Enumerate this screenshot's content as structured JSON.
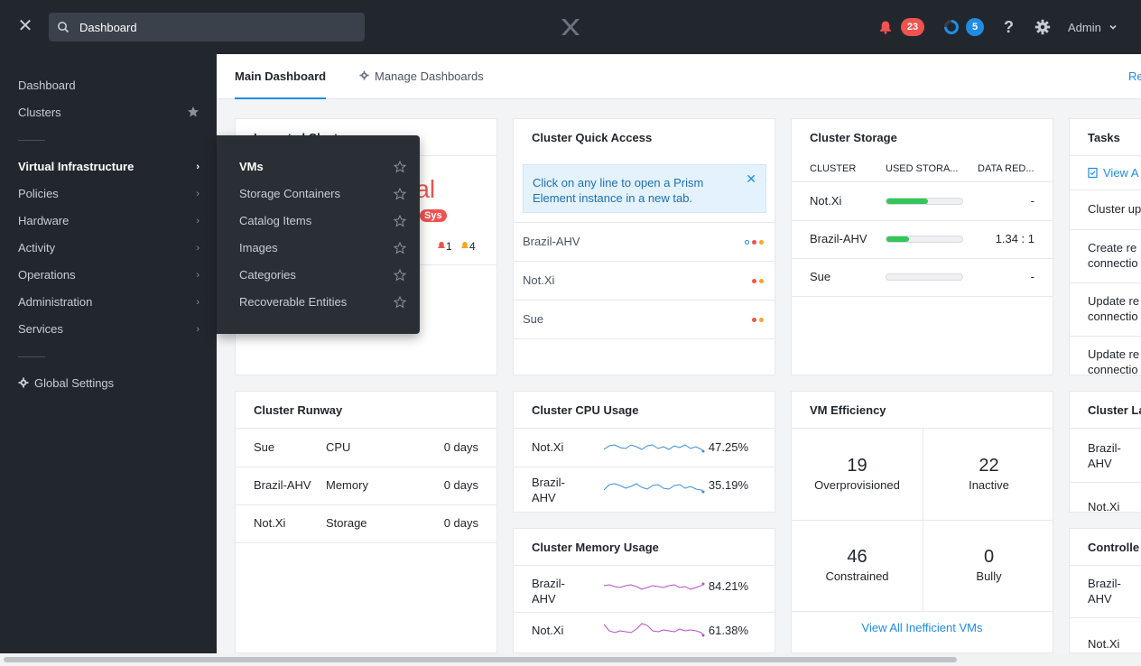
{
  "topbar": {
    "search_value": "Dashboard",
    "alerts_count": "23",
    "tasks_count": "5",
    "help_label": "?",
    "user_label": "Admin"
  },
  "sidebar": {
    "items": [
      {
        "label": "Dashboard"
      },
      {
        "label": "Clusters"
      },
      {
        "label": "Virtual Infrastructure"
      },
      {
        "label": "Policies"
      },
      {
        "label": "Hardware"
      },
      {
        "label": "Activity"
      },
      {
        "label": "Operations"
      },
      {
        "label": "Administration"
      },
      {
        "label": "Services"
      }
    ],
    "global_settings": "Global Settings"
  },
  "flyout": {
    "items": [
      {
        "label": "VMs"
      },
      {
        "label": "Storage Containers"
      },
      {
        "label": "Catalog Items"
      },
      {
        "label": "Images"
      },
      {
        "label": "Categories"
      },
      {
        "label": "Recoverable Entities"
      }
    ]
  },
  "tabs": {
    "main": "Main Dashboard",
    "manage": "Manage Dashboards",
    "reset": "Reset"
  },
  "impacted": {
    "partial_title": "Impacted Clust",
    "partial_value": "ral",
    "sys_badge": "Sys",
    "critical_count": "1",
    "warning_count": "4"
  },
  "quick_access": {
    "title": "Cluster Quick Access",
    "info": "Click on any line to open a Prism Element instance in a new tab.",
    "rows": [
      {
        "name": "Brazil-AHV"
      },
      {
        "name": "Not.Xi"
      },
      {
        "name": "Sue"
      }
    ]
  },
  "storage": {
    "title": "Cluster Storage",
    "headers": [
      "CLUSTER",
      "USED STORA...",
      "DATA RED..."
    ],
    "rows": [
      {
        "name": "Not.Xi",
        "used": 0.55,
        "reduction": "-"
      },
      {
        "name": "Brazil-AHV",
        "used": 0.3,
        "reduction": "1.34 : 1"
      },
      {
        "name": "Sue",
        "used": 0.0,
        "reduction": "-"
      }
    ]
  },
  "tasks": {
    "title": "Tasks",
    "view_all": "View A",
    "rows": [
      {
        "line1": "Cluster up",
        "line2": ""
      },
      {
        "line1": "Create re",
        "line2": "connectio"
      },
      {
        "line1": "Update re",
        "line2": "connectio"
      },
      {
        "line1": "Update re",
        "line2": "connectio"
      }
    ]
  },
  "runway": {
    "title": "Cluster Runway",
    "rows": [
      {
        "cluster": "Sue",
        "resource": "CPU",
        "value": "0 days"
      },
      {
        "cluster": "Brazil-AHV",
        "resource": "Memory",
        "value": "0 days"
      },
      {
        "cluster": "Not.Xi",
        "resource": "Storage",
        "value": "0 days"
      }
    ]
  },
  "cpu": {
    "title": "Cluster CPU Usage",
    "color": "#3b8fd6",
    "rows": [
      {
        "name_l1": "Not.Xi",
        "name_l2": "",
        "value": "47.25%"
      },
      {
        "name_l1": "Brazil-",
        "name_l2": "AHV",
        "value": "35.19%"
      }
    ]
  },
  "memory": {
    "title": "Cluster Memory Usage",
    "color": "#b44ec4",
    "rows": [
      {
        "name_l1": "Brazil-",
        "name_l2": "AHV",
        "value": "84.21%"
      },
      {
        "name_l1": "Not.Xi",
        "name_l2": "",
        "value": "61.38%"
      }
    ]
  },
  "efficiency": {
    "title": "VM Efficiency",
    "cells": [
      {
        "num": "19",
        "label": "Overprovisioned"
      },
      {
        "num": "22",
        "label": "Inactive"
      },
      {
        "num": "46",
        "label": "Constrained"
      },
      {
        "num": "0",
        "label": "Bully"
      }
    ],
    "view_all": "View All Inefficient VMs"
  },
  "latency": {
    "title": "Cluster La",
    "rows": [
      {
        "name_l1": "Brazil-",
        "name_l2": "AHV"
      },
      {
        "name_l1": "Not.Xi",
        "name_l2": ""
      }
    ]
  },
  "controller": {
    "title": "Controlle",
    "rows": [
      {
        "name_l1": "Brazil-",
        "name_l2": "AHV"
      },
      {
        "name_l1": "Not.Xi",
        "name_l2": ""
      }
    ]
  },
  "colors": {
    "accent": "#1f8ce6",
    "critical": "#ef5350",
    "warning": "#f5a623",
    "good": "#34c65a"
  }
}
